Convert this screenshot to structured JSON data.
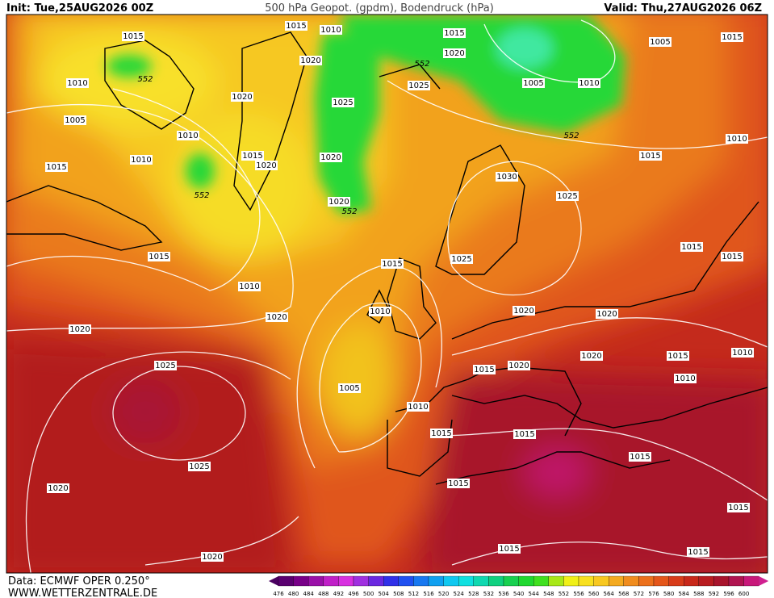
{
  "header": {
    "init": "Init: Tue,25AUG2026 00Z",
    "title": "500 hPa Geopot. (gpdm), Bodendruck (hPa)",
    "valid": "Valid: Thu,27AUG2026 06Z"
  },
  "footer": {
    "data": "Data: ECMWF OPER 0.250°",
    "site": "WWW.WETTERZENTRALE.DE"
  },
  "isobar_labels": [
    "1015",
    "1015",
    "1010",
    "1015",
    "1020",
    "1005",
    "1015",
    "552",
    "1010",
    "1020",
    "552",
    "1025",
    "1005",
    "1010",
    "1020",
    "1025",
    "1005",
    "1010",
    "552",
    "1010",
    "1010",
    "1015",
    "1020",
    "1020",
    "1015",
    "1015",
    "1030",
    "552",
    "1020",
    "552",
    "1025",
    "1015",
    "1015",
    "1025",
    "1015",
    "1015",
    "1010",
    "1010",
    "1020",
    "1020",
    "1020",
    "1020",
    "1020",
    "1015",
    "1010",
    "1025",
    "1020",
    "1015",
    "1010",
    "1005",
    "1010",
    "1015",
    "1015",
    "1025",
    "1015",
    "1015",
    "1020",
    "1015",
    "1015",
    "1015",
    "1020"
  ],
  "colorbar": {
    "labels": [
      476,
      480,
      484,
      488,
      492,
      496,
      500,
      504,
      508,
      512,
      516,
      520,
      524,
      528,
      532,
      536,
      540,
      544,
      548,
      552,
      556,
      560,
      564,
      568,
      572,
      576,
      580,
      584,
      588,
      592,
      596,
      600
    ]
  }
}
